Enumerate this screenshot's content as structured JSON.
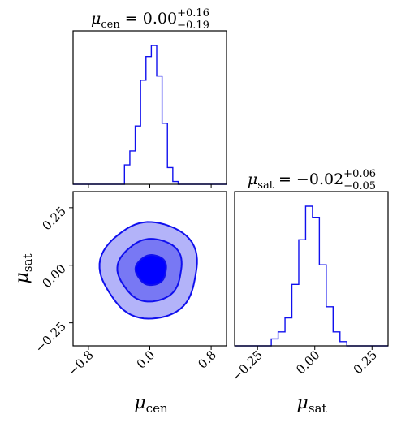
{
  "chart_data": [
    {
      "type": "histogram",
      "panel": "mu_cen marginal",
      "title": {
        "symbol": "μ",
        "sub": "cen",
        "value": " = 0.00",
        "sup": "+0.16",
        "low": "−0.19"
      },
      "xlim": [
        -1.0,
        1.0
      ],
      "bin_edges": [
        -0.4,
        -0.33,
        -0.26,
        -0.19,
        -0.12,
        -0.05,
        0.02,
        0.09,
        0.16,
        0.23,
        0.3,
        0.37,
        0.44,
        0.51
      ],
      "values": [
        0.0,
        0.14,
        0.24,
        0.42,
        0.75,
        0.92,
        1.0,
        0.78,
        0.44,
        0.12,
        0.02,
        0.0,
        0.0
      ],
      "color": "#1010ee"
    },
    {
      "type": "contour",
      "panel": "joint",
      "xlabel": {
        "symbol": "μ",
        "sub": "cen"
      },
      "ylabel": {
        "symbol": "μ",
        "sub": "sat"
      },
      "xlim": [
        -1.0,
        1.0
      ],
      "ylim": [
        -0.35,
        0.32
      ],
      "xticks": [
        "−0.8",
        "0.0",
        "0.8"
      ],
      "yticks": [
        "0.25",
        "0.00",
        "−0.25"
      ],
      "levels": [
        {
          "level": "outer",
          "fill": "#b3b3f9",
          "center": [
            0.0,
            -0.02
          ],
          "rx": 0.63,
          "ry": 0.21,
          "angle_deg": -28
        },
        {
          "level": "middle",
          "fill": "#7878f4",
          "center": [
            0.01,
            -0.02
          ],
          "rx": 0.42,
          "ry": 0.135,
          "angle_deg": -30
        },
        {
          "level": "inner",
          "fill": "#0000ff",
          "center": [
            0.02,
            -0.02
          ],
          "rx": 0.2,
          "ry": 0.065,
          "angle_deg": -30
        }
      ],
      "line_color": "#1010ee"
    },
    {
      "type": "histogram",
      "panel": "mu_sat marginal",
      "title": {
        "symbol": "μ",
        "sub": "sat",
        "value": " = −0.02",
        "sup": "+0.06",
        "low": "−0.05"
      },
      "xlabel": {
        "symbol": "μ",
        "sub": "sat"
      },
      "xlim": [
        -0.35,
        0.32
      ],
      "xticks": [
        "−0.25",
        "0.00",
        "0.25"
      ],
      "bin_edges": [
        -0.22,
        -0.19,
        -0.16,
        -0.13,
        -0.1,
        -0.07,
        -0.04,
        -0.01,
        0.02,
        0.05,
        0.08,
        0.11,
        0.14,
        0.17
      ],
      "values": [
        0.0,
        0.05,
        0.1,
        0.2,
        0.44,
        0.76,
        1.0,
        0.92,
        0.58,
        0.28,
        0.1,
        0.03,
        0.0
      ],
      "color": "#1010ee"
    }
  ]
}
